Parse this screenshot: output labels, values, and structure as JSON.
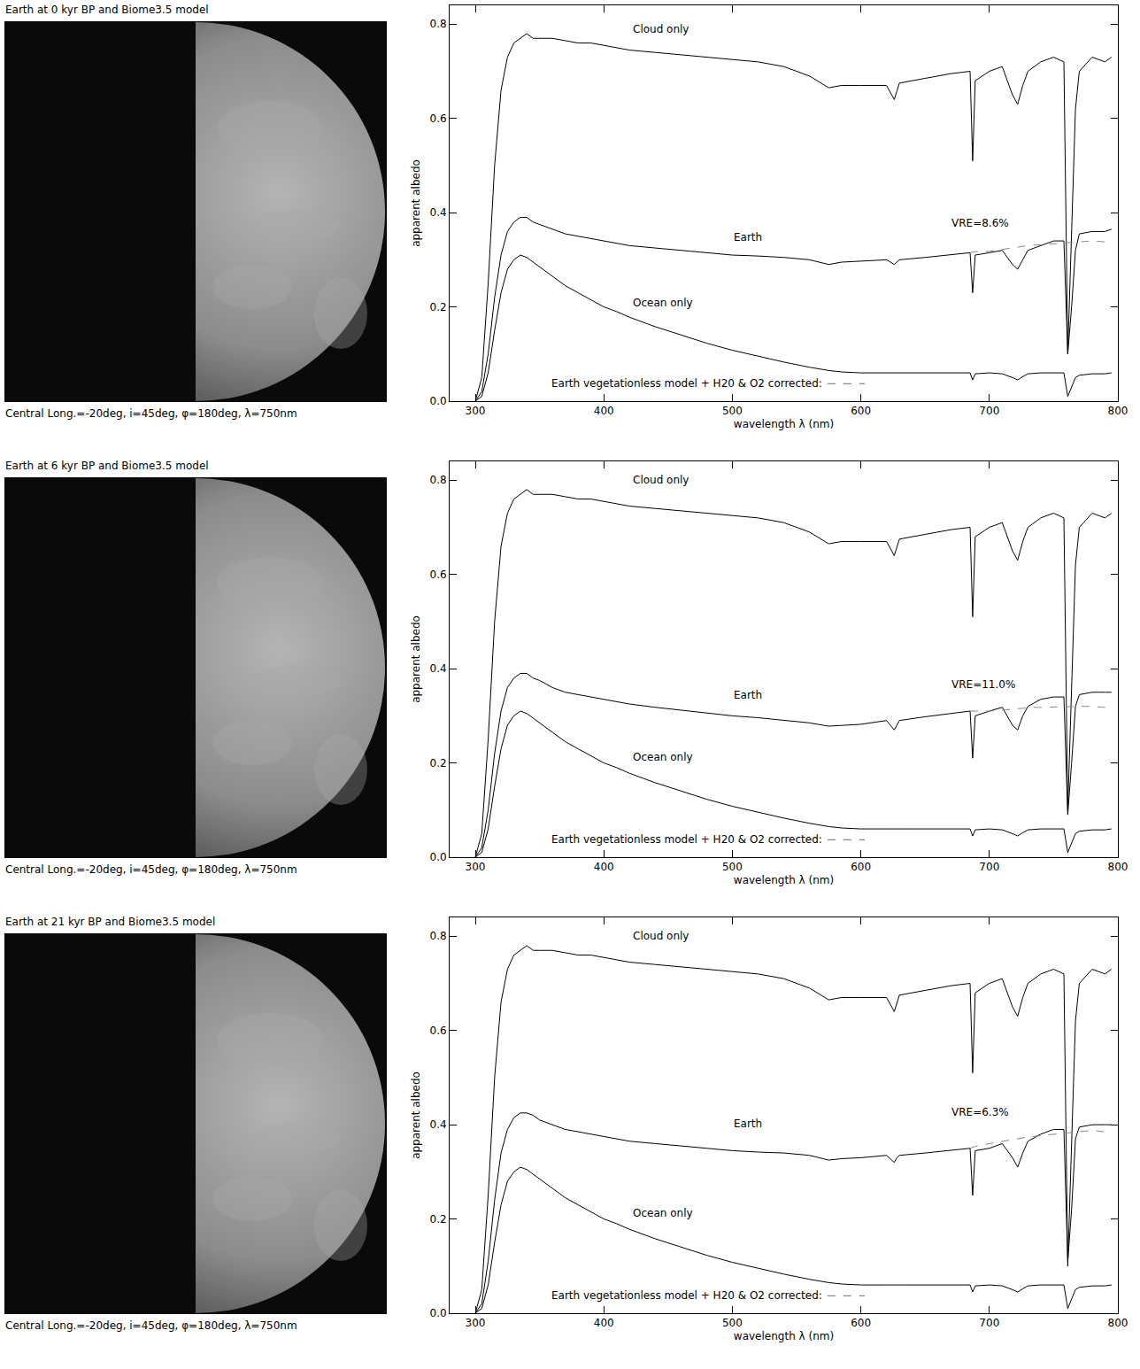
{
  "chart_data": [
    {
      "type": "line",
      "title": "Earth at 0 kyr BP and Biome3.5 model",
      "subtitle": "Central Long.=-20deg, i=45deg, φ=180deg, λ=750nm",
      "x_label": "wavelength λ (nm)",
      "y_label": "apparent albedo",
      "xlim": [
        280,
        800
      ],
      "ylim": [
        0,
        0.84
      ],
      "xticks": [
        300,
        400,
        500,
        600,
        700,
        800
      ],
      "yticks": [
        {
          "value": 0,
          "label": "0.0"
        },
        0.2,
        0.4,
        0.6,
        0.8
      ],
      "x": [
        300,
        305,
        310,
        315,
        320,
        325,
        330,
        335,
        340,
        345,
        350,
        360,
        370,
        380,
        390,
        400,
        410,
        420,
        440,
        460,
        480,
        500,
        520,
        540,
        560,
        575,
        585,
        600,
        620,
        626,
        628,
        630,
        650,
        670,
        685,
        687,
        689,
        700,
        710,
        718,
        722,
        726,
        730,
        740,
        750,
        758,
        761,
        764,
        767,
        770,
        780,
        790,
        795
      ],
      "series": [
        {
          "name": "Cloud only",
          "color": "#000000",
          "line_style": "solid",
          "label_x": 421,
          "label_y": 0.79,
          "values": [
            0.0,
            0.05,
            0.25,
            0.5,
            0.66,
            0.73,
            0.76,
            0.77,
            0.78,
            0.77,
            0.77,
            0.77,
            0.765,
            0.76,
            0.76,
            0.755,
            0.75,
            0.745,
            0.74,
            0.735,
            0.73,
            0.725,
            0.72,
            0.71,
            0.69,
            0.665,
            0.67,
            0.67,
            0.67,
            0.64,
            0.66,
            0.675,
            0.685,
            0.695,
            0.7,
            0.51,
            0.68,
            0.7,
            0.71,
            0.65,
            0.63,
            0.67,
            0.7,
            0.72,
            0.73,
            0.72,
            0.1,
            0.35,
            0.62,
            0.7,
            0.73,
            0.72,
            0.73
          ]
        },
        {
          "name": "Earth",
          "color": "#000000",
          "line_style": "solid",
          "label_x": 500,
          "label_y": 0.348,
          "values": [
            0.0,
            0.02,
            0.1,
            0.22,
            0.31,
            0.36,
            0.38,
            0.39,
            0.39,
            0.38,
            0.375,
            0.365,
            0.355,
            0.35,
            0.345,
            0.34,
            0.335,
            0.33,
            0.325,
            0.32,
            0.315,
            0.31,
            0.308,
            0.305,
            0.3,
            0.29,
            0.295,
            0.297,
            0.3,
            0.29,
            0.295,
            0.3,
            0.305,
            0.31,
            0.315,
            0.23,
            0.31,
            0.315,
            0.32,
            0.29,
            0.28,
            0.3,
            0.32,
            0.33,
            0.34,
            0.34,
            0.1,
            0.2,
            0.32,
            0.355,
            0.36,
            0.36,
            0.365
          ]
        },
        {
          "name": "Ocean only",
          "color": "#000000",
          "line_style": "solid",
          "label_x": 421,
          "label_y": 0.209,
          "values": [
            0.0,
            0.01,
            0.06,
            0.15,
            0.23,
            0.28,
            0.3,
            0.31,
            0.305,
            0.295,
            0.285,
            0.265,
            0.245,
            0.23,
            0.215,
            0.2,
            0.19,
            0.178,
            0.158,
            0.14,
            0.123,
            0.108,
            0.095,
            0.083,
            0.072,
            0.065,
            0.062,
            0.06,
            0.06,
            0.059,
            0.06,
            0.06,
            0.06,
            0.06,
            0.06,
            0.045,
            0.058,
            0.06,
            0.058,
            0.05,
            0.045,
            0.052,
            0.058,
            0.06,
            0.06,
            0.06,
            0.01,
            0.03,
            0.05,
            0.055,
            0.058,
            0.058,
            0.06
          ]
        },
        {
          "name": "Earth vegetationless model + H20 & O2 corrected:",
          "color": "#888888",
          "line_style": "dashed",
          "label_x": 571,
          "label_y": 0.037,
          "values": [
            null,
            null,
            null,
            null,
            null,
            null,
            null,
            null,
            null,
            null,
            null,
            null,
            null,
            null,
            null,
            null,
            null,
            null,
            null,
            null,
            null,
            null,
            null,
            null,
            null,
            null,
            null,
            null,
            null,
            null,
            null,
            null,
            null,
            null,
            0.315,
            0.316,
            0.317,
            0.318,
            0.322,
            0.325,
            0.327,
            0.328,
            0.33,
            0.332,
            0.334,
            0.335,
            0.335,
            0.336,
            0.337,
            0.338,
            0.34,
            0.338,
            0.335
          ]
        }
      ],
      "annotations": [
        {
          "text": "VRE=8.6%",
          "x": 669,
          "y": 0.378
        }
      ]
    },
    {
      "type": "line",
      "title": "Earth at 6 kyr BP and Biome3.5 model",
      "subtitle": "Central Long.=-20deg, i=45deg, φ=180deg, λ=750nm",
      "x_label": "wavelength λ (nm)",
      "y_label": "apparent albedo",
      "xlim": [
        280,
        800
      ],
      "ylim": [
        0,
        0.84
      ],
      "xticks": [
        300,
        400,
        500,
        600,
        700,
        800
      ],
      "yticks": [
        {
          "value": 0,
          "label": "0.0"
        },
        0.2,
        0.4,
        0.6,
        0.8
      ],
      "x": [
        300,
        305,
        310,
        315,
        320,
        325,
        330,
        335,
        340,
        345,
        350,
        360,
        370,
        380,
        390,
        400,
        410,
        420,
        440,
        460,
        480,
        500,
        520,
        540,
        560,
        575,
        585,
        600,
        620,
        626,
        628,
        630,
        650,
        670,
        685,
        687,
        689,
        700,
        710,
        718,
        722,
        726,
        730,
        740,
        750,
        758,
        761,
        764,
        767,
        770,
        780,
        790,
        795
      ],
      "series": [
        {
          "name": "Cloud only",
          "color": "#000000",
          "line_style": "solid",
          "label_x": 421,
          "label_y": 0.8,
          "values": [
            0.0,
            0.05,
            0.25,
            0.5,
            0.66,
            0.73,
            0.76,
            0.77,
            0.78,
            0.77,
            0.77,
            0.77,
            0.765,
            0.76,
            0.76,
            0.755,
            0.75,
            0.745,
            0.74,
            0.735,
            0.73,
            0.725,
            0.72,
            0.71,
            0.69,
            0.665,
            0.67,
            0.67,
            0.67,
            0.64,
            0.66,
            0.675,
            0.685,
            0.695,
            0.7,
            0.51,
            0.68,
            0.7,
            0.71,
            0.65,
            0.63,
            0.67,
            0.7,
            0.72,
            0.73,
            0.72,
            0.1,
            0.35,
            0.62,
            0.7,
            0.73,
            0.72,
            0.73
          ]
        },
        {
          "name": "Earth",
          "color": "#000000",
          "line_style": "solid",
          "label_x": 500,
          "label_y": 0.344,
          "values": [
            0.0,
            0.02,
            0.1,
            0.22,
            0.31,
            0.36,
            0.38,
            0.39,
            0.39,
            0.38,
            0.375,
            0.36,
            0.35,
            0.345,
            0.34,
            0.335,
            0.33,
            0.325,
            0.318,
            0.312,
            0.306,
            0.3,
            0.296,
            0.29,
            0.285,
            0.278,
            0.28,
            0.282,
            0.29,
            0.27,
            0.28,
            0.29,
            0.298,
            0.305,
            0.31,
            0.21,
            0.3,
            0.31,
            0.318,
            0.28,
            0.27,
            0.3,
            0.32,
            0.335,
            0.34,
            0.34,
            0.09,
            0.2,
            0.32,
            0.345,
            0.35,
            0.35,
            0.35
          ]
        },
        {
          "name": "Ocean only",
          "color": "#000000",
          "line_style": "solid",
          "label_x": 421,
          "label_y": 0.212,
          "values": [
            0.0,
            0.01,
            0.06,
            0.15,
            0.23,
            0.28,
            0.3,
            0.31,
            0.305,
            0.295,
            0.285,
            0.265,
            0.245,
            0.23,
            0.215,
            0.2,
            0.19,
            0.178,
            0.158,
            0.14,
            0.123,
            0.108,
            0.095,
            0.083,
            0.072,
            0.065,
            0.062,
            0.06,
            0.06,
            0.059,
            0.06,
            0.06,
            0.06,
            0.06,
            0.06,
            0.045,
            0.058,
            0.06,
            0.058,
            0.05,
            0.045,
            0.052,
            0.058,
            0.06,
            0.06,
            0.06,
            0.01,
            0.03,
            0.05,
            0.055,
            0.058,
            0.058,
            0.06
          ]
        },
        {
          "name": "Earth vegetationless model + H20 & O2 corrected:",
          "color": "#888888",
          "line_style": "dashed",
          "label_x": 571,
          "label_y": 0.037,
          "values": [
            null,
            null,
            null,
            null,
            null,
            null,
            null,
            null,
            null,
            null,
            null,
            null,
            null,
            null,
            null,
            null,
            null,
            null,
            null,
            null,
            null,
            null,
            null,
            null,
            null,
            null,
            null,
            null,
            null,
            null,
            null,
            null,
            null,
            null,
            0.31,
            0.31,
            0.31,
            0.31,
            0.312,
            0.314,
            0.315,
            0.316,
            0.317,
            0.318,
            0.319,
            0.32,
            0.32,
            0.32,
            0.32,
            0.32,
            0.32,
            0.318,
            0.315
          ]
        }
      ],
      "annotations": [
        {
          "text": "VRE=11.0%",
          "x": 669,
          "y": 0.367
        }
      ]
    },
    {
      "type": "line",
      "title": "Earth at 21 kyr BP and Biome3.5 model",
      "subtitle": "Central Long.=-20deg, i=45deg, φ=180deg, λ=750nm",
      "x_label": "wavelength λ (nm)",
      "y_label": "apparent albedo",
      "xlim": [
        280,
        800
      ],
      "ylim": [
        0,
        0.84
      ],
      "xticks": [
        300,
        400,
        500,
        600,
        700,
        800
      ],
      "yticks": [
        {
          "value": 0,
          "label": "0.0"
        },
        0.2,
        0.4,
        0.6,
        0.8
      ],
      "x": [
        300,
        305,
        310,
        315,
        320,
        325,
        330,
        335,
        340,
        345,
        350,
        360,
        370,
        380,
        390,
        400,
        410,
        420,
        440,
        460,
        480,
        500,
        520,
        540,
        560,
        575,
        585,
        600,
        620,
        626,
        628,
        630,
        650,
        670,
        685,
        687,
        689,
        700,
        710,
        718,
        722,
        726,
        730,
        740,
        750,
        758,
        761,
        764,
        767,
        770,
        780,
        790,
        795
      ],
      "series": [
        {
          "name": "Cloud only",
          "color": "#000000",
          "line_style": "solid",
          "label_x": 421,
          "label_y": 0.8,
          "values": [
            0.0,
            0.05,
            0.25,
            0.5,
            0.66,
            0.73,
            0.76,
            0.77,
            0.78,
            0.77,
            0.77,
            0.77,
            0.765,
            0.76,
            0.76,
            0.755,
            0.75,
            0.745,
            0.74,
            0.735,
            0.73,
            0.725,
            0.72,
            0.71,
            0.69,
            0.665,
            0.67,
            0.67,
            0.67,
            0.64,
            0.66,
            0.675,
            0.685,
            0.695,
            0.7,
            0.51,
            0.68,
            0.7,
            0.71,
            0.65,
            0.63,
            0.67,
            0.7,
            0.72,
            0.73,
            0.72,
            0.1,
            0.35,
            0.62,
            0.7,
            0.73,
            0.72,
            0.73
          ]
        },
        {
          "name": "Earth",
          "color": "#000000",
          "line_style": "solid",
          "label_x": 500,
          "label_y": 0.402,
          "values": [
            0.0,
            0.02,
            0.11,
            0.24,
            0.34,
            0.39,
            0.415,
            0.425,
            0.425,
            0.42,
            0.41,
            0.4,
            0.39,
            0.385,
            0.38,
            0.375,
            0.37,
            0.365,
            0.36,
            0.355,
            0.35,
            0.345,
            0.342,
            0.34,
            0.335,
            0.325,
            0.328,
            0.33,
            0.335,
            0.32,
            0.33,
            0.335,
            0.34,
            0.345,
            0.35,
            0.25,
            0.345,
            0.35,
            0.36,
            0.33,
            0.31,
            0.34,
            0.365,
            0.38,
            0.39,
            0.39,
            0.11,
            0.22,
            0.37,
            0.395,
            0.4,
            0.4,
            0.4
          ]
        },
        {
          "name": "Ocean only",
          "color": "#000000",
          "line_style": "solid",
          "label_x": 421,
          "label_y": 0.212,
          "values": [
            0.0,
            0.01,
            0.06,
            0.15,
            0.23,
            0.28,
            0.3,
            0.31,
            0.305,
            0.295,
            0.285,
            0.265,
            0.245,
            0.23,
            0.215,
            0.2,
            0.19,
            0.178,
            0.158,
            0.14,
            0.123,
            0.108,
            0.095,
            0.083,
            0.072,
            0.065,
            0.062,
            0.06,
            0.06,
            0.059,
            0.06,
            0.06,
            0.06,
            0.06,
            0.06,
            0.045,
            0.058,
            0.06,
            0.058,
            0.05,
            0.045,
            0.052,
            0.058,
            0.06,
            0.06,
            0.06,
            0.01,
            0.03,
            0.05,
            0.055,
            0.058,
            0.058,
            0.06
          ]
        },
        {
          "name": "Earth vegetationless model + H20 & O2 corrected:",
          "color": "#888888",
          "line_style": "dashed",
          "label_x": 571,
          "label_y": 0.037,
          "values": [
            null,
            null,
            null,
            null,
            null,
            null,
            null,
            null,
            null,
            null,
            null,
            null,
            null,
            null,
            null,
            null,
            null,
            null,
            null,
            null,
            null,
            null,
            null,
            null,
            null,
            null,
            null,
            null,
            null,
            null,
            null,
            null,
            null,
            null,
            0.35,
            0.352,
            0.354,
            0.36,
            0.365,
            0.368,
            0.37,
            0.372,
            0.374,
            0.377,
            0.38,
            0.382,
            0.383,
            0.384,
            0.385,
            0.386,
            0.388,
            0.385,
            0.38
          ]
        }
      ],
      "annotations": [
        {
          "text": "VRE=6.3%",
          "x": 669,
          "y": 0.427
        }
      ]
    }
  ]
}
